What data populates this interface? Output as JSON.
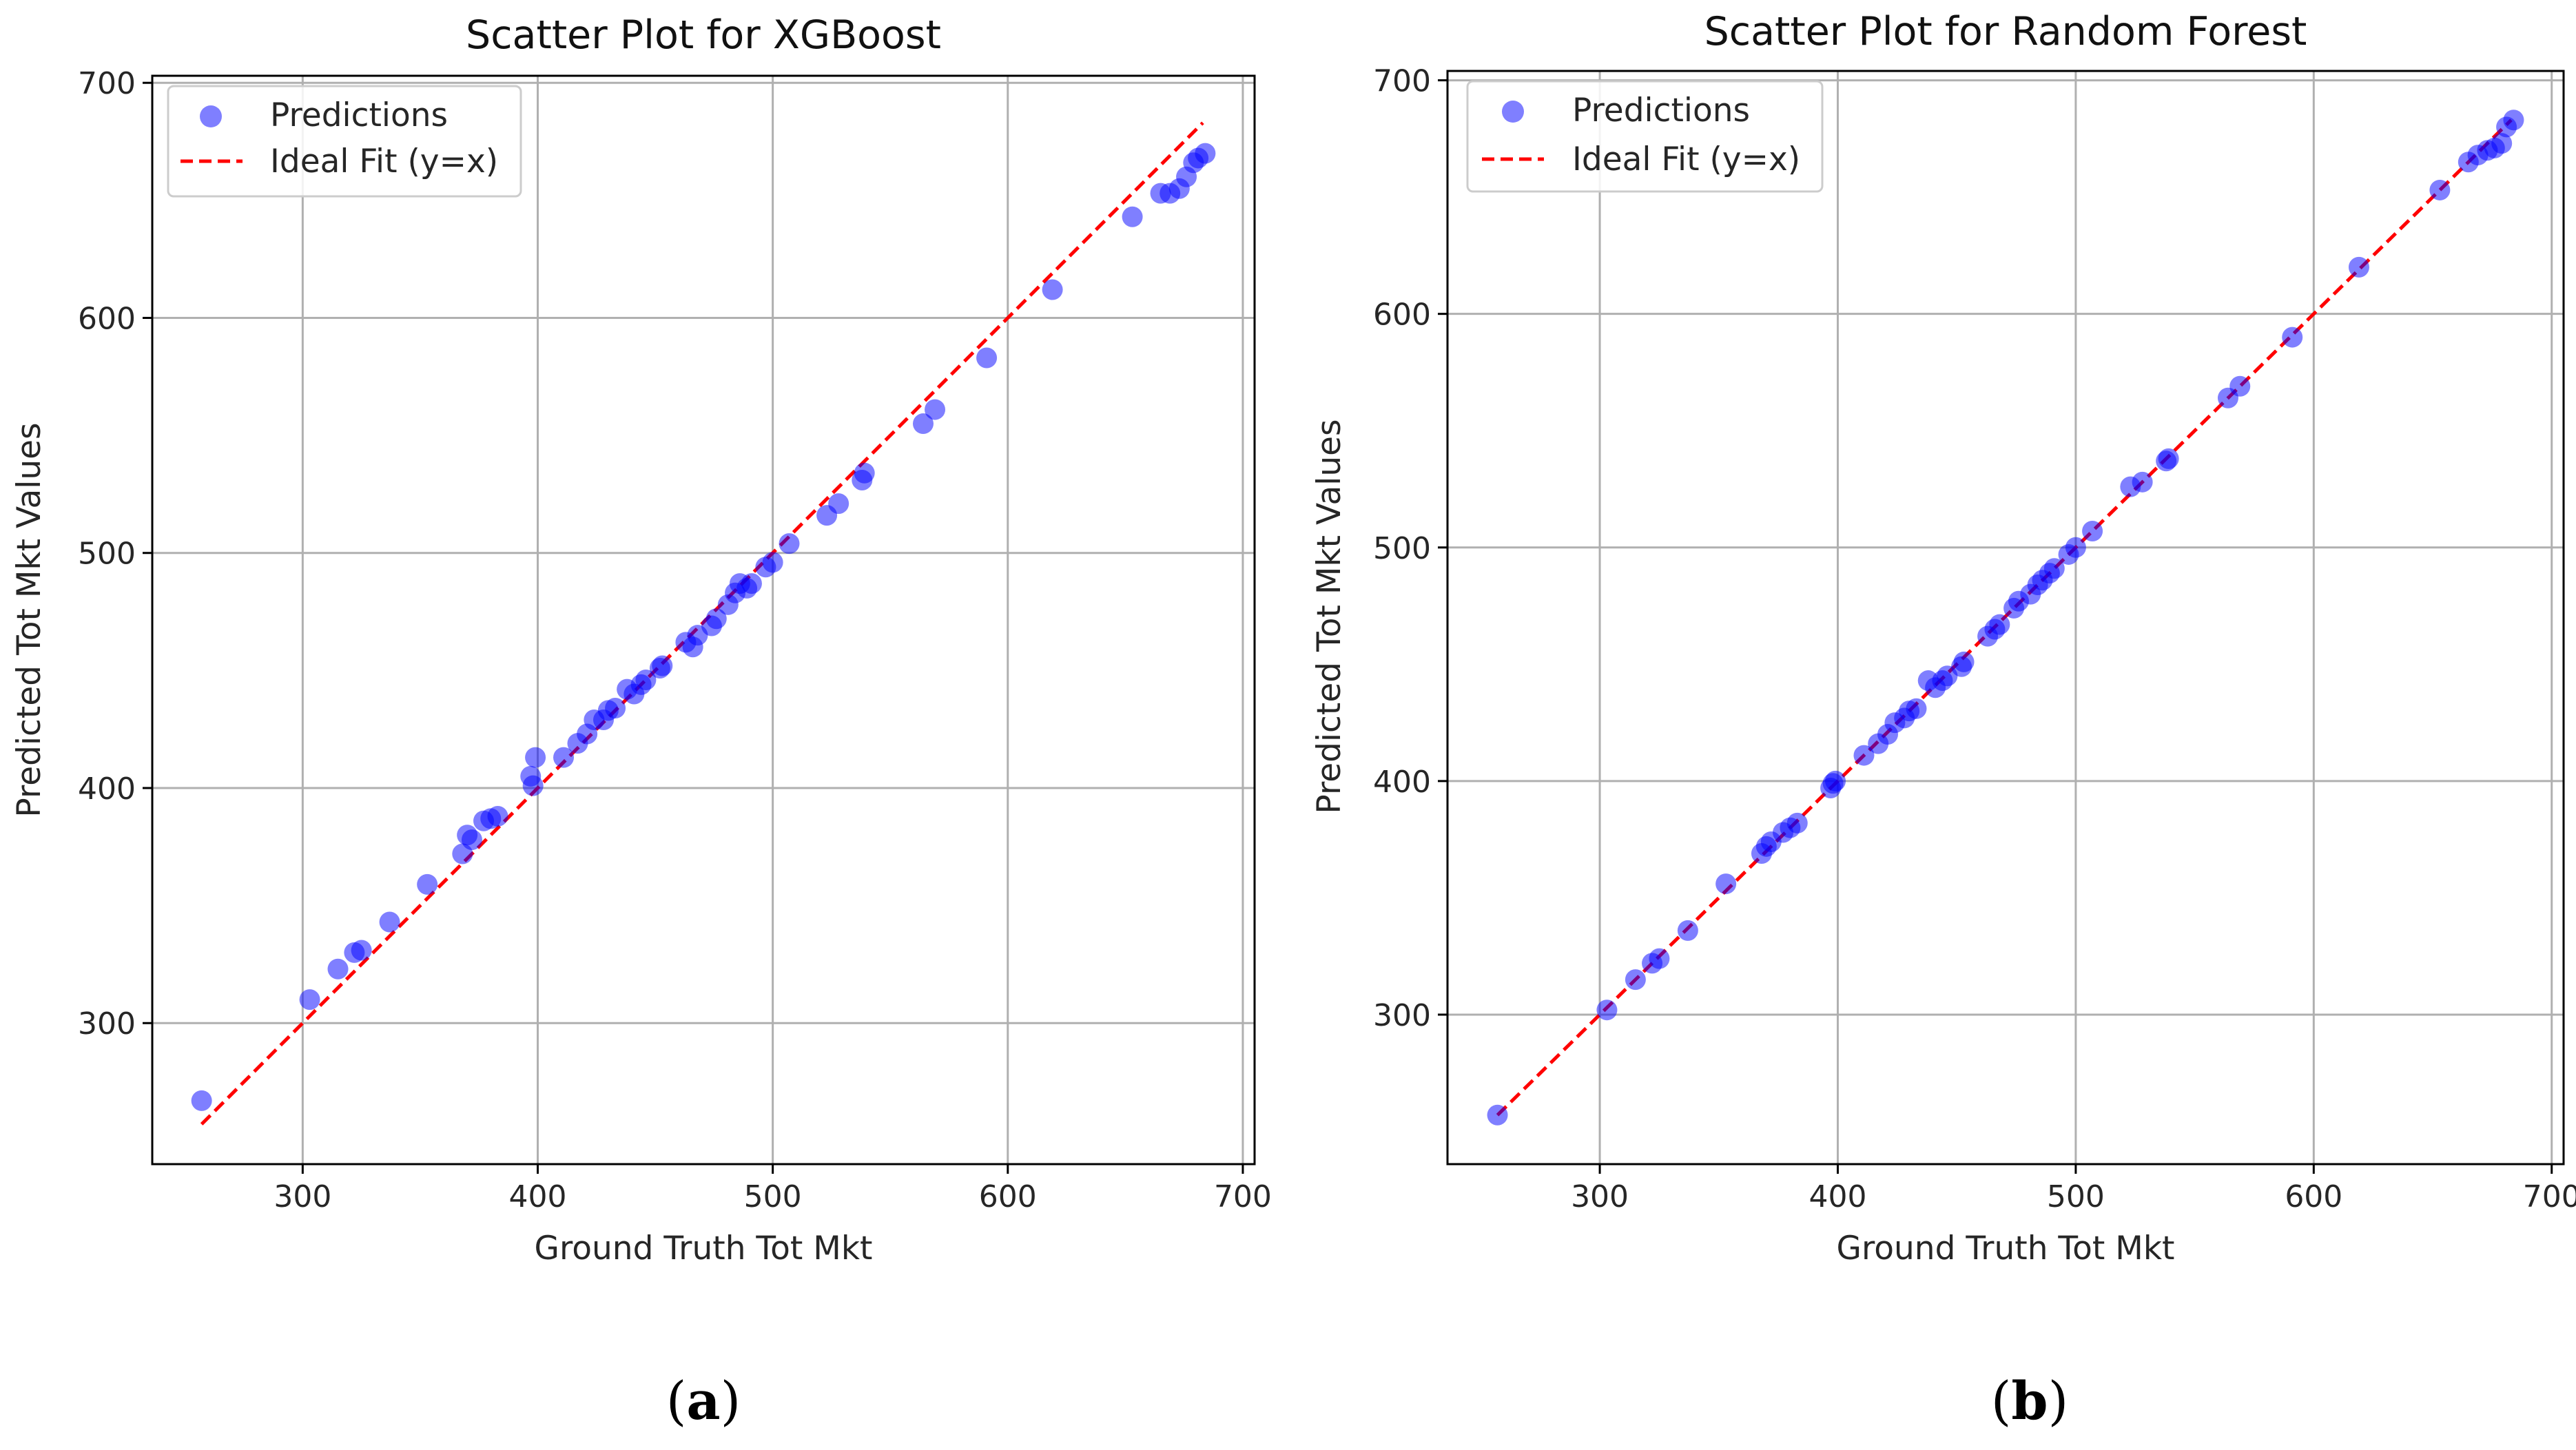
{
  "colors": {
    "points": "#0000ff",
    "ideal_line": "#ff0000",
    "grid": "#b0b0b0",
    "axes": "#000000"
  },
  "chart_data": [
    {
      "type": "scatter",
      "panel_label": {
        "open": "(",
        "letter": "a",
        "close": ")"
      },
      "title": "Scatter Plot for XGBoost",
      "xlabel": "Ground Truth Tot Mkt",
      "ylabel": "Predicted Tot Mkt Values",
      "xlim": [
        236,
        705
      ],
      "ylim": [
        240,
        703
      ],
      "xticks": [
        300,
        400,
        500,
        600,
        700
      ],
      "yticks": [
        300,
        400,
        500,
        600,
        700
      ],
      "grid": true,
      "legend": {
        "position": "top-left",
        "entries": [
          {
            "label": "Predictions",
            "marker": "circle"
          },
          {
            "label": "Ideal Fit (y=x)",
            "marker": "dashed-line"
          }
        ]
      },
      "ideal_line": {
        "x": [
          257,
          683
        ],
        "y": [
          257,
          683
        ]
      },
      "series": [
        {
          "name": "Predictions",
          "x": [
            257,
            303,
            315,
            322,
            325,
            337,
            353,
            368,
            370,
            372,
            377,
            380,
            383,
            397,
            398,
            399,
            411,
            417,
            421,
            424,
            428,
            430,
            433,
            438,
            441,
            444,
            446,
            452,
            453,
            463,
            466,
            468,
            474,
            476,
            481,
            484,
            486,
            489,
            491,
            497,
            500,
            507,
            523,
            528,
            538,
            539,
            564,
            569,
            591,
            619,
            653,
            665,
            669,
            673,
            676,
            679,
            681,
            684
          ],
          "y": [
            267,
            310,
            323,
            330,
            331,
            343,
            359,
            372,
            380,
            378,
            386,
            387,
            388,
            405,
            401,
            413,
            413,
            419,
            423,
            429,
            429,
            433,
            434,
            442,
            440,
            444,
            446,
            451,
            452,
            462,
            460,
            465,
            469,
            472,
            478,
            483,
            487,
            485,
            487,
            494,
            496,
            504,
            516,
            521,
            531,
            534,
            555,
            561,
            583,
            612,
            643,
            653,
            653,
            655,
            660,
            666,
            668,
            670
          ]
        }
      ]
    },
    {
      "type": "scatter",
      "panel_label": {
        "open": "(",
        "letter": "b",
        "close": ")"
      },
      "title": "Scatter Plot for Random Forest",
      "xlabel": "Ground Truth Tot Mkt",
      "ylabel": "Predicted Tot Mkt Values",
      "xlim": [
        236,
        705
      ],
      "ylim": [
        236,
        704
      ],
      "xticks": [
        300,
        400,
        500,
        600,
        700
      ],
      "yticks": [
        300,
        400,
        500,
        600,
        700
      ],
      "grid": true,
      "legend": {
        "position": "top-left",
        "entries": [
          {
            "label": "Predictions",
            "marker": "circle"
          },
          {
            "label": "Ideal Fit (y=x)",
            "marker": "dashed-line"
          }
        ]
      },
      "ideal_line": {
        "x": [
          257,
          683
        ],
        "y": [
          257,
          683
        ]
      },
      "series": [
        {
          "name": "Predictions",
          "x": [
            257,
            303,
            315,
            322,
            325,
            337,
            353,
            368,
            370,
            372,
            377,
            380,
            383,
            397,
            398,
            399,
            411,
            417,
            421,
            424,
            428,
            430,
            433,
            438,
            441,
            444,
            446,
            452,
            453,
            463,
            466,
            468,
            474,
            476,
            481,
            484,
            486,
            489,
            491,
            497,
            500,
            507,
            523,
            528,
            538,
            539,
            564,
            569,
            591,
            619,
            653,
            665,
            669,
            673,
            676,
            679,
            681,
            684
          ],
          "y": [
            257,
            302,
            315,
            322,
            324,
            336,
            356,
            369,
            372,
            374,
            378,
            380,
            382,
            397,
            399,
            400,
            411,
            416,
            420,
            425,
            427,
            430,
            431,
            443,
            440,
            443,
            445,
            449,
            451,
            462,
            465,
            467,
            474,
            477,
            480,
            484,
            486,
            489,
            491,
            497,
            500,
            507,
            526,
            528,
            537,
            538,
            564,
            569,
            590,
            620,
            653,
            665,
            668,
            670,
            671,
            673,
            680,
            683
          ]
        }
      ]
    }
  ]
}
